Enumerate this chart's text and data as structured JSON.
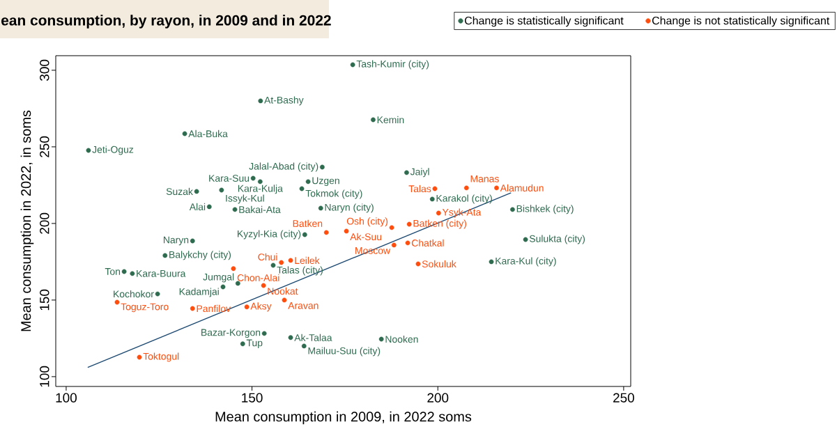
{
  "chart_data": {
    "type": "scatter",
    "title": "ean consumption, by rayon, in 2009 and in 2022",
    "xlabel": "Mean consumption in 2009, in 2022 soms",
    "ylabel": "Mean consumption in 2022, in soms",
    "xlim": [
      97.2,
      251.9
    ],
    "ylim": [
      93.6,
      309.5
    ],
    "xticks": [
      100,
      150,
      200,
      250
    ],
    "yticks": [
      100,
      150,
      200,
      250,
      300
    ],
    "legend": "top right",
    "marker": "circle",
    "series": [
      {
        "name": "Change is statistically significant",
        "color": "#2e6b4f",
        "x": [
          177.1,
          152.3,
          182.6,
          131.9,
          106,
          168.9,
          191.6,
          150.3,
          152.2,
          165.1,
          163.4,
          135.1,
          141.8,
          198.5,
          138.5,
          145.4,
          168.5,
          220.1,
          164.2,
          223.6,
          134,
          126.6,
          214.4,
          155.7,
          115.6,
          117.8,
          146.2,
          142.2,
          124.6,
          153.3,
          160.4,
          147.5,
          184.8,
          164
        ],
        "values": [
          303.6,
          280,
          267.7,
          258.6,
          247.7,
          236.8,
          233.2,
          229.5,
          227.3,
          227.3,
          222.7,
          220.9,
          221.8,
          215.9,
          210.9,
          209.1,
          210,
          209.1,
          192.7,
          189.5,
          188.6,
          179.1,
          175,
          172.7,
          168.6,
          167.3,
          160.9,
          158.6,
          154,
          128.2,
          125.5,
          121.4,
          124.5,
          120
        ],
        "value_labels": [
          "Tash-Kumir (city)",
          "At-Bashy",
          "Kemin",
          "Ala-Buka",
          "Jeti-Oguz",
          "Jalal-Abad (city)",
          "Jaiyl",
          "Kara-Suu",
          "Kara-Kulja",
          "Uzgen",
          "Tokmok (city)",
          "Suzak",
          "Issyk-Kul",
          "Karakol (city)",
          "Alai",
          "Bakai-Ata",
          "Naryn (city)",
          "Bishkek (city)",
          "Kyzyl-Kia (city)",
          "Sulukta (city)",
          "Naryn",
          "Balykchy (city)",
          "Kara-Kul (city)",
          "Talas (city)",
          "Ton",
          "Kara-Buura",
          "Jumgal",
          "Kadamjai",
          "Kochokor",
          "Bazar-Korgon",
          "Ak-Talaa",
          "Tup",
          "Nooken",
          "Mailuu-Suu (city)"
        ]
      },
      {
        "name": "Change is not statistically significant",
        "color": "#ff4d0d",
        "x": [
          199.2,
          207.7,
          215.8,
          200.2,
          192.3,
          187.6,
          170,
          175.4,
          188.2,
          191.9,
          194.7,
          145,
          160.4,
          157.9,
          153.1,
          158.7,
          148.6,
          134,
          113.7,
          119.7
        ],
        "values": [
          222.7,
          223.2,
          223.2,
          206.8,
          199.5,
          197.3,
          194.1,
          195,
          185.9,
          187.3,
          173.6,
          170.5,
          175.9,
          174.5,
          159.5,
          150,
          145.5,
          144.5,
          148.6,
          112.7
        ],
        "value_labels": [
          "Talas",
          "Manas",
          "Alamudun",
          "Ysyk-Ata",
          "Batken (city)",
          "Osh (city)",
          "Batken",
          "Ak-Suu",
          "Moscow",
          "Chatkal",
          "Sokuluk",
          "Chon-Alai",
          "Leilek",
          "Chui",
          "Nookat",
          "Aravan",
          "Aksy",
          "Panfilov",
          "Toguz-Toro",
          "Toktogul"
        ]
      },
      {
        "type": "line",
        "marker": "none",
        "color": "#1f4b73",
        "x": [
          105.8,
          219.7
        ],
        "values": [
          106,
          220
        ]
      }
    ]
  }
}
